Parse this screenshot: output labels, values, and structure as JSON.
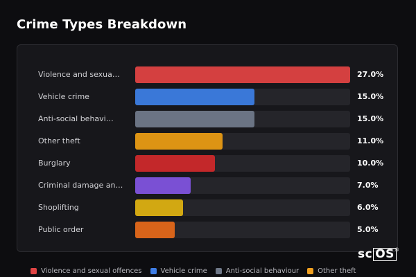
{
  "chart_data": {
    "type": "bar",
    "orientation": "horizontal",
    "title": "Crime Types Breakdown",
    "xlim": [
      0,
      27
    ],
    "categories": [
      "Violence and sexua…",
      "Vehicle crime",
      "Anti-social behavi…",
      "Other theft",
      "Burglary",
      "Criminal damage an…",
      "Shoplifting",
      "Public order"
    ],
    "values": [
      27.0,
      15.0,
      15.0,
      11.0,
      10.0,
      7.0,
      6.0,
      5.0
    ],
    "value_labels": [
      "27.0%",
      "15.0%",
      "15.0%",
      "11.0%",
      "10.0%",
      "7.0%",
      "6.0%",
      "5.0%"
    ],
    "colors": [
      "#d44040",
      "#3a78d8",
      "#6b7484",
      "#dd9414",
      "#c3282a",
      "#7a50d4",
      "#d2a812",
      "#d8641a"
    ],
    "legend": [
      {
        "label": "Violence and sexual offences",
        "color": "#e04444"
      },
      {
        "label": "Vehicle crime",
        "color": "#3f7ee6"
      },
      {
        "label": "Anti-social behaviour",
        "color": "#6f7888"
      },
      {
        "label": "Other theft",
        "color": "#f0a020"
      }
    ],
    "legend_position": "bottom"
  },
  "brand": {
    "logo_prefix": "sc",
    "logo_boxed": "OS",
    "logo_mark": "®"
  }
}
